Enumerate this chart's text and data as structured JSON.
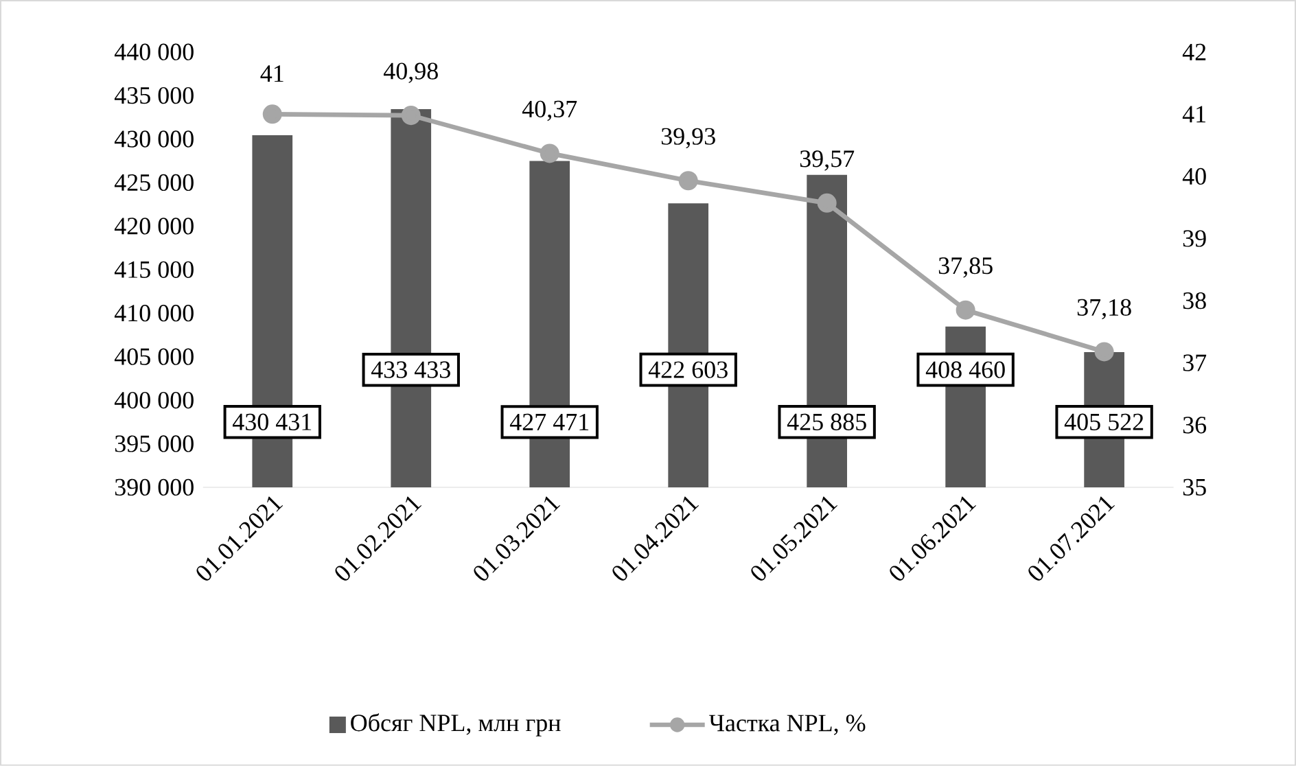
{
  "chart_data": {
    "type": "bar",
    "categories": [
      "01.01.2021",
      "01.02.2021",
      "01.03.2021",
      "01.04.2021",
      "01.05.2021",
      "01.06.2021",
      "01.07.2021"
    ],
    "series": [
      {
        "name": "Обсяг NPL, млн грн",
        "color": "#595959",
        "values": [
          430431,
          433433,
          427471,
          422603,
          425885,
          408460,
          405522
        ],
        "value_labels": [
          "430 431",
          "433 433",
          "427 471",
          "422 603",
          "425 885",
          "408 460",
          "405 522"
        ]
      },
      {
        "name": "Частка NPL, %",
        "type": "line",
        "axis": "y2",
        "color": "#a6a6a6",
        "marker": "circle",
        "values": [
          41,
          40.98,
          40.37,
          39.93,
          39.57,
          37.85,
          37.18
        ],
        "value_labels": [
          "41",
          "40,98",
          "40,37",
          "39,93",
          "39,57",
          "37,85",
          "37,18"
        ]
      }
    ],
    "ylim": [
      390000,
      440000
    ],
    "yticks": [
      {
        "value": 390000,
        "label": "390 000"
      },
      {
        "value": 395000,
        "label": "395 000"
      },
      {
        "value": 400000,
        "label": "400 000"
      },
      {
        "value": 405000,
        "label": "405 000"
      },
      {
        "value": 410000,
        "label": "410 000"
      },
      {
        "value": 415000,
        "label": "415 000"
      },
      {
        "value": 420000,
        "label": "420 000"
      },
      {
        "value": 425000,
        "label": "425 000"
      },
      {
        "value": 430000,
        "label": "430 000"
      },
      {
        "value": 435000,
        "label": "435 000"
      },
      {
        "value": 440000,
        "label": "440 000"
      }
    ],
    "y2lim": [
      35,
      42
    ],
    "y2ticks": [
      35,
      36,
      37,
      38,
      39,
      40,
      41,
      42
    ],
    "legend": "bottom"
  }
}
